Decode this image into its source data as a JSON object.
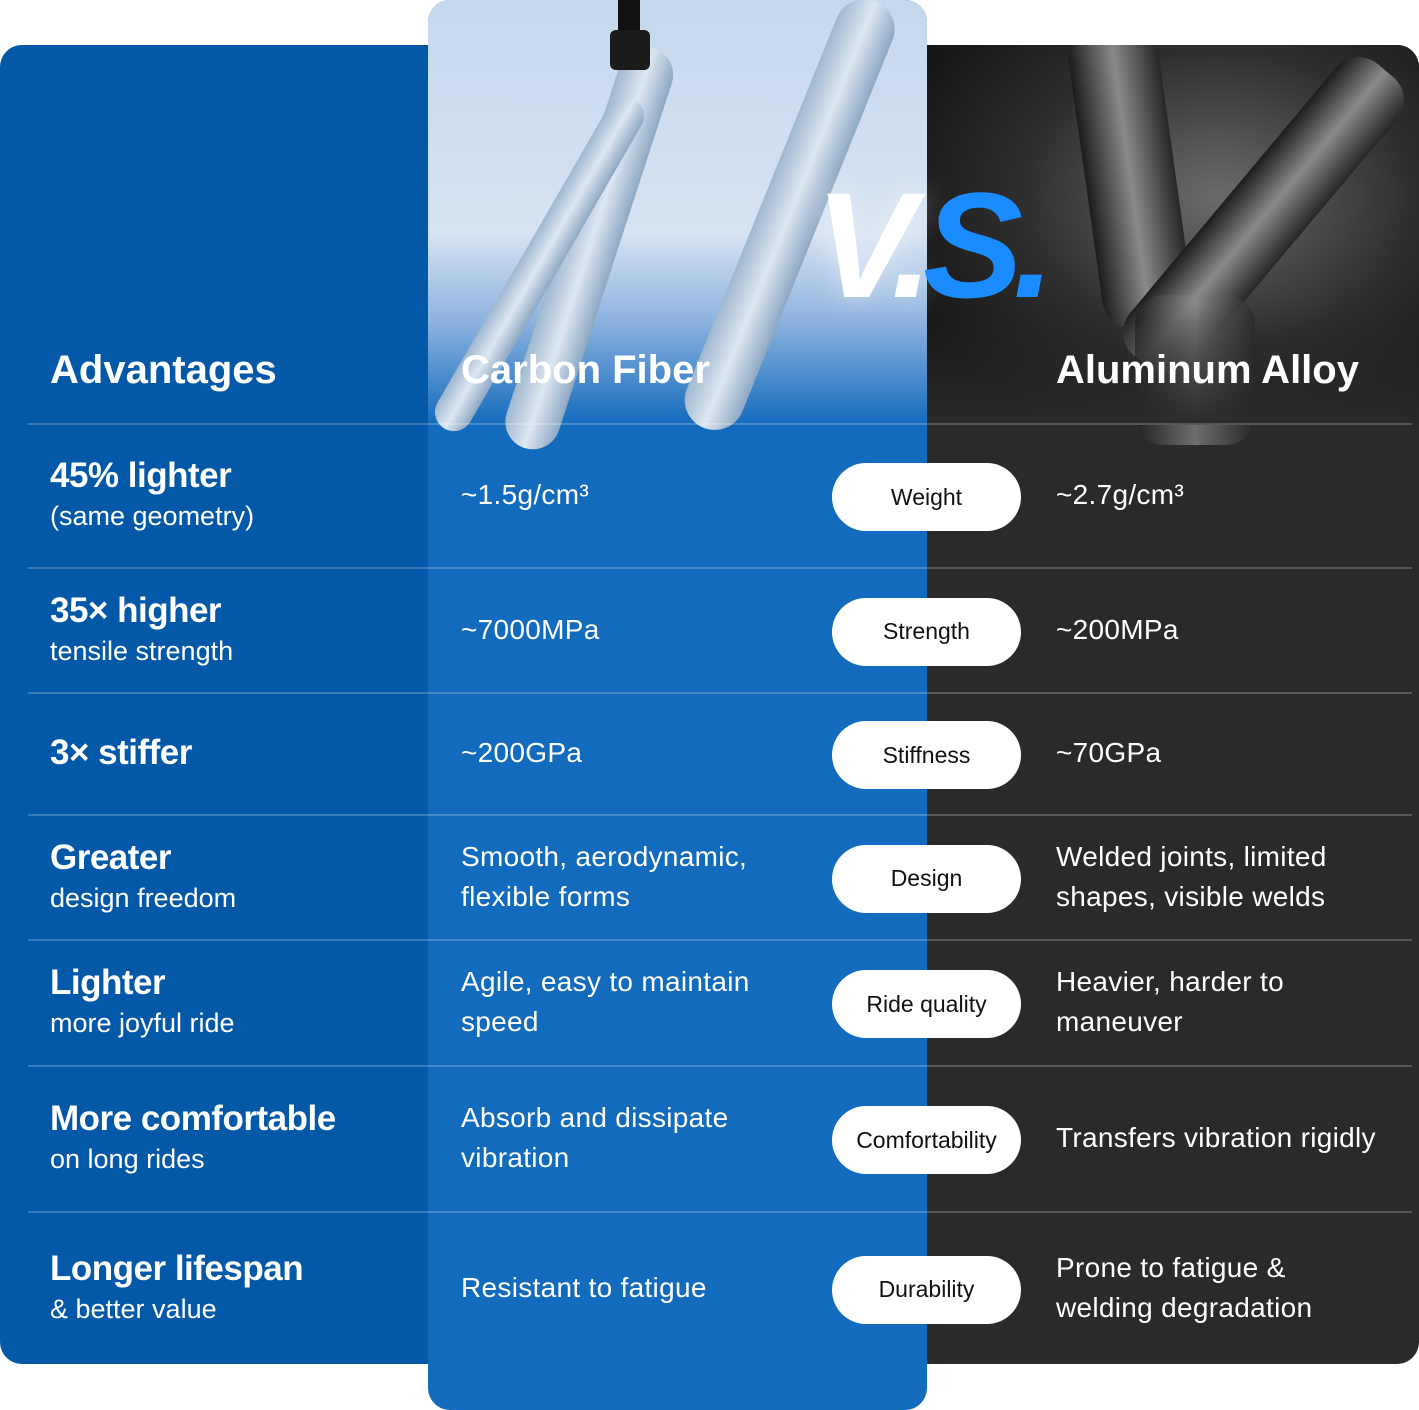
{
  "headers": {
    "advantages": "Advantages",
    "carbon": "Carbon Fiber",
    "aluminum": "Aluminum Alloy"
  },
  "vs": {
    "v": "V.",
    "s": "S."
  },
  "colors": {
    "left_panel": "#0358a7",
    "carbon_column": "#136bbd",
    "aluminum_column": "#2a2a2a",
    "vs_accent": "#1a8cff",
    "pill": "#ffffff"
  },
  "rows": [
    {
      "title": "45% lighter",
      "subtitle": "(same geometry)",
      "carbon": "~1.5g/cm³",
      "label": "Weight",
      "aluminum": "~2.7g/cm³"
    },
    {
      "title": "35× higher",
      "subtitle": "tensile strength",
      "carbon": "~7000MPa",
      "label": "Strength",
      "aluminum": "~200MPa"
    },
    {
      "title": "3× stiffer",
      "subtitle": "",
      "carbon": "~200GPa",
      "label": "Stiffness",
      "aluminum": "~70GPa"
    },
    {
      "title": "Greater",
      "subtitle": "design freedom",
      "carbon": "Smooth, aerodynamic, flexible forms",
      "label": "Design",
      "aluminum": "Welded joints, limited shapes, visible welds"
    },
    {
      "title": "Lighter",
      "subtitle": "more joyful ride",
      "carbon": "Agile, easy to maintain speed",
      "label": "Ride quality",
      "aluminum": "Heavier, harder to maneuver"
    },
    {
      "title": "More comfortable",
      "subtitle": "on long rides",
      "carbon": "Absorb and dissipate vibration",
      "label": "Comfortability",
      "aluminum": "Transfers vibration rigidly"
    },
    {
      "title": "Longer lifespan",
      "subtitle": "& better value",
      "carbon": "Resistant to fatigue",
      "label": "Durability",
      "aluminum": "Prone to fatigue & welding degradation"
    }
  ]
}
